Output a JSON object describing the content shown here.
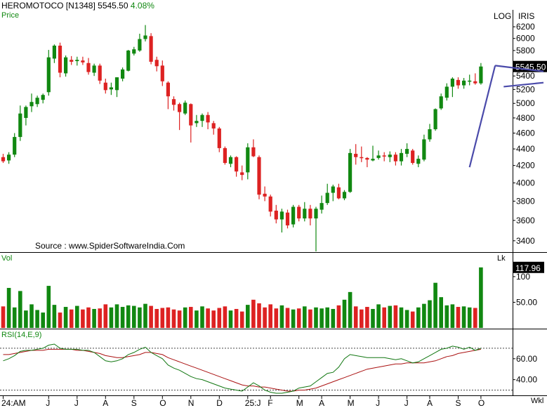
{
  "header": {
    "symbol": "HEROMOTOCO [N1348]",
    "last_price": "5545.50",
    "change_pct": "4.08%",
    "price_label": "Price",
    "log_label": "LOG",
    "iris_label": "IRIS",
    "vol_label": "Vol",
    "vol_unit": "Lk",
    "rsi_label": "RSI(14,E,9)",
    "wkl_label": "Wkl",
    "source": "Source : www.SpiderSoftwareIndia.Com"
  },
  "colors": {
    "up": "#118811",
    "down": "#dd2222",
    "trendline": "#4a4aaa",
    "rsi_line": "#117711",
    "rsi_signal": "#aa1111"
  },
  "chart_data": {
    "type": "candlestick",
    "scale": "log",
    "price_ticks": [
      6200,
      6000,
      5800,
      5545.5,
      5400,
      5200,
      5000,
      4800,
      4600,
      4400,
      4200,
      4000,
      3800,
      3600,
      3400
    ],
    "price_tick_labels": [
      "6200",
      "6000",
      "5800",
      "5545.50",
      "5400",
      "5200",
      "5000",
      "4800",
      "4600",
      "4400",
      "4200",
      "4000",
      "3800",
      "3600",
      "3400"
    ],
    "last_price_label": "5545.50",
    "volume_ticks": [
      100,
      50
    ],
    "volume_tick_labels": [
      "100",
      "50.00"
    ],
    "volume_last_label": "117.96",
    "rsi_ticks": [
      60,
      40
    ],
    "rsi_tick_labels": [
      "60.00",
      "40.00"
    ],
    "rsi_ref_levels": [
      70,
      30
    ],
    "month_labels": [
      "24:AM",
      "J",
      "J",
      "A",
      "S",
      "O",
      "N",
      "D",
      "25:J",
      "F",
      "M",
      "A",
      "M",
      "J",
      "J",
      "A",
      "S",
      "O"
    ],
    "month_candle_index": [
      0,
      8,
      13,
      18,
      23,
      28,
      33,
      38,
      43,
      47,
      52,
      56,
      61,
      66,
      71,
      75,
      80,
      84
    ],
    "candles": [
      [
        4300,
        4340,
        4230,
        4250
      ],
      [
        4260,
        4360,
        4220,
        4330
      ],
      [
        4330,
        4600,
        4300,
        4550
      ],
      [
        4550,
        4970,
        4500,
        4860
      ],
      [
        4800,
        4970,
        4700,
        4950
      ],
      [
        4960,
        5140,
        4880,
        5020
      ],
      [
        4990,
        5110,
        4950,
        5080
      ],
      [
        5050,
        5140,
        5000,
        5120
      ],
      [
        5160,
        5810,
        5110,
        5690
      ],
      [
        5670,
        5900,
        5600,
        5880
      ],
      [
        5880,
        5930,
        5380,
        5450
      ],
      [
        5440,
        5720,
        5390,
        5690
      ],
      [
        5650,
        5710,
        5570,
        5620
      ],
      [
        5630,
        5700,
        5560,
        5650
      ],
      [
        5640,
        5700,
        5570,
        5610
      ],
      [
        5600,
        5680,
        5420,
        5460
      ],
      [
        5450,
        5590,
        5400,
        5560
      ],
      [
        5560,
        5590,
        5280,
        5330
      ],
      [
        5300,
        5360,
        5140,
        5190
      ],
      [
        5200,
        5300,
        5120,
        5230
      ],
      [
        5190,
        5380,
        5090,
        5380
      ],
      [
        5360,
        5530,
        5320,
        5500
      ],
      [
        5480,
        5810,
        5470,
        5800
      ],
      [
        5750,
        5860,
        5720,
        5820
      ],
      [
        5800,
        6080,
        5780,
        5990
      ],
      [
        5990,
        6230,
        5950,
        6050
      ],
      [
        6040,
        6090,
        5580,
        5620
      ],
      [
        5650,
        5700,
        5470,
        5550
      ],
      [
        5560,
        5640,
        5250,
        5320
      ],
      [
        5300,
        5320,
        4920,
        5100
      ],
      [
        5060,
        5100,
        4900,
        4980
      ],
      [
        4990,
        5010,
        4640,
        4880
      ],
      [
        4860,
        5040,
        4840,
        5010
      ],
      [
        4990,
        5000,
        4480,
        4700
      ],
      [
        4730,
        4840,
        4680,
        4760
      ],
      [
        4760,
        4860,
        4680,
        4840
      ],
      [
        4840,
        4880,
        4650,
        4740
      ],
      [
        4730,
        4760,
        4580,
        4660
      ],
      [
        4660,
        4680,
        4360,
        4410
      ],
      [
        4410,
        4430,
        4210,
        4230
      ],
      [
        4220,
        4320,
        4180,
        4300
      ],
      [
        4300,
        4310,
        4070,
        4130
      ],
      [
        4120,
        4200,
        4030,
        4090
      ],
      [
        4120,
        4470,
        4040,
        4420
      ],
      [
        4420,
        4520,
        4300,
        4310
      ],
      [
        4300,
        4320,
        3820,
        3870
      ],
      [
        3880,
        3960,
        3800,
        3850
      ],
      [
        3850,
        3870,
        3640,
        3690
      ],
      [
        3700,
        3760,
        3570,
        3610
      ],
      [
        3610,
        3720,
        3480,
        3690
      ],
      [
        3680,
        3710,
        3520,
        3550
      ],
      [
        3560,
        3760,
        3530,
        3740
      ],
      [
        3740,
        3760,
        3590,
        3620
      ],
      [
        3620,
        3790,
        3590,
        3720
      ],
      [
        3720,
        3760,
        3550,
        3620
      ],
      [
        3620,
        3740,
        3300,
        3720
      ],
      [
        3710,
        3860,
        3670,
        3780
      ],
      [
        3780,
        3990,
        3760,
        3890
      ],
      [
        3890,
        3980,
        3800,
        3960
      ],
      [
        3950,
        3990,
        3820,
        3830
      ],
      [
        3830,
        3920,
        3810,
        3900
      ],
      [
        3900,
        4400,
        3890,
        4350
      ],
      [
        4340,
        4460,
        4210,
        4300
      ],
      [
        4300,
        4430,
        4240,
        4290
      ],
      [
        4290,
        4300,
        4180,
        4270
      ],
      [
        4260,
        4440,
        4250,
        4280
      ],
      [
        4290,
        4380,
        4270,
        4320
      ],
      [
        4320,
        4360,
        4250,
        4310
      ],
      [
        4300,
        4370,
        4240,
        4330
      ],
      [
        4330,
        4360,
        4200,
        4250
      ],
      [
        4250,
        4400,
        4200,
        4350
      ],
      [
        4340,
        4470,
        4300,
        4400
      ],
      [
        4380,
        4400,
        4210,
        4230
      ],
      [
        4220,
        4320,
        4180,
        4280
      ],
      [
        4270,
        4580,
        4250,
        4520
      ],
      [
        4520,
        4720,
        4490,
        4650
      ],
      [
        4650,
        4930,
        4630,
        4920
      ],
      [
        4930,
        5140,
        4910,
        5100
      ],
      [
        5080,
        5290,
        5040,
        5240
      ],
      [
        5240,
        5380,
        5090,
        5360
      ],
      [
        5340,
        5380,
        5210,
        5260
      ],
      [
        5260,
        5370,
        5210,
        5330
      ],
      [
        5330,
        5420,
        5260,
        5330
      ],
      [
        5320,
        5440,
        5270,
        5290
      ],
      [
        5290,
        5600,
        5270,
        5545.5
      ]
    ],
    "volume": [
      42,
      78,
      40,
      72,
      34,
      46,
      35,
      30,
      82,
      45,
      30,
      41,
      36,
      43,
      36,
      40,
      37,
      38,
      46,
      40,
      46,
      41,
      44,
      43,
      40,
      47,
      43,
      37,
      39,
      40,
      36,
      34,
      40,
      41,
      34,
      42,
      38,
      34,
      39,
      42,
      34,
      37,
      32,
      45,
      55,
      48,
      40,
      46,
      38,
      44,
      39,
      36,
      38,
      42,
      36,
      40,
      38,
      40,
      37,
      44,
      55,
      70,
      42,
      36,
      41,
      37,
      46,
      40,
      43,
      44,
      40,
      35,
      32,
      40,
      47,
      54,
      88,
      60,
      44,
      46,
      41,
      42,
      40,
      39,
      118
    ],
    "rsi": [
      58,
      60,
      63,
      67,
      68,
      68,
      69,
      70,
      73,
      74,
      70,
      69,
      69,
      69,
      68,
      68,
      66,
      62,
      58,
      57,
      58,
      60,
      64,
      66,
      69,
      71,
      66,
      63,
      60,
      54,
      51,
      49,
      46,
      43,
      41,
      40,
      38,
      36,
      34,
      32,
      31,
      30,
      29,
      33,
      37,
      34,
      30,
      28,
      27,
      27,
      28,
      29,
      32,
      33,
      34,
      38,
      42,
      46,
      47,
      52,
      60,
      64,
      63,
      62,
      61,
      61,
      61,
      61,
      60,
      59,
      60,
      58,
      56,
      57,
      60,
      63,
      66,
      69,
      70,
      72,
      71,
      69,
      71,
      68,
      70
    ],
    "rsi_signal": [
      64,
      64,
      65,
      66,
      67,
      68,
      68,
      68,
      69,
      69,
      69,
      69,
      69,
      68,
      68,
      67,
      66,
      65,
      63,
      62,
      61,
      61,
      62,
      63,
      64,
      66,
      66,
      65,
      64,
      61,
      59,
      57,
      55,
      53,
      51,
      49,
      47,
      45,
      43,
      41,
      39,
      37,
      35,
      34,
      34,
      33,
      33,
      32,
      31,
      30,
      29,
      29,
      30,
      30,
      31,
      32,
      34,
      36,
      38,
      40,
      42,
      44,
      46,
      48,
      50,
      51,
      52,
      53,
      54,
      55,
      55,
      56,
      56,
      56,
      56,
      57,
      58,
      60,
      62,
      63,
      65,
      66,
      67,
      68,
      69
    ],
    "trendlines": [
      {
        "from": [
          82,
          4180
        ],
        "to": [
          86.5,
          5560
        ]
      },
      {
        "from": [
          86.5,
          5560
        ],
        "to": [
          95,
          5470
        ]
      },
      {
        "from": [
          88,
          5240
        ],
        "to": [
          95,
          5300
        ]
      }
    ]
  }
}
